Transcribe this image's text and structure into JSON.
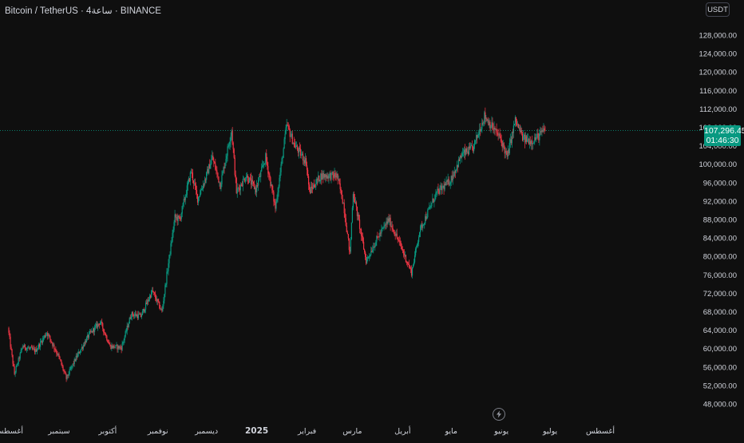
{
  "header": {
    "symbol_title": "Bitcoin / TetherUS · 4ساعة · BINANCE",
    "currency_button": "USDT"
  },
  "price_badge": {
    "price": "107,296.45",
    "countdown": "01:46:30"
  },
  "icons": {
    "lightning": "lightning-icon"
  },
  "colors": {
    "up": "#089981",
    "down": "#f23645",
    "background": "#0f0f0f",
    "axis_text": "#d1d4dc"
  },
  "chart_data": {
    "type": "candlestick",
    "title": "",
    "xlabel": "",
    "ylabel": "",
    "ylim": [
      46000,
      130000
    ],
    "y_ticks": [
      48000,
      52000,
      56000,
      60000,
      64000,
      68000,
      72000,
      76000,
      80000,
      84000,
      88000,
      92000,
      96000,
      100000,
      104000,
      108000,
      112000,
      116000,
      120000,
      124000,
      128000
    ],
    "y_tick_labels": [
      "48,000.00",
      "52,000.00",
      "56,000.00",
      "60,000.00",
      "64,000.00",
      "68,000.00",
      "72,000.00",
      "76,000.00",
      "80,000.00",
      "84,000.00",
      "88,000.00",
      "92,000.00",
      "96,000.00",
      "100,000.00",
      "104,000.00",
      "108,000.00",
      "112,000.00",
      "116,000.00",
      "120,000.00",
      "124,000.00",
      "128,000.00"
    ],
    "x_ticks": [
      {
        "label": "أغسطس",
        "date": "2024-08-01",
        "bold": false
      },
      {
        "label": "سبتمبر",
        "date": "2024-09-01",
        "bold": false
      },
      {
        "label": "أكتوبر",
        "date": "2024-10-01",
        "bold": false
      },
      {
        "label": "نوفمبر",
        "date": "2024-11-01",
        "bold": false
      },
      {
        "label": "ديسمبر",
        "date": "2024-12-01",
        "bold": false
      },
      {
        "label": "2025",
        "date": "2025-01-01",
        "bold": true
      },
      {
        "label": "فبراير",
        "date": "2025-02-01",
        "bold": false
      },
      {
        "label": "مارس",
        "date": "2025-03-01",
        "bold": false
      },
      {
        "label": "أبريل",
        "date": "2025-04-01",
        "bold": false
      },
      {
        "label": "مايو",
        "date": "2025-05-01",
        "bold": false
      },
      {
        "label": "يونيو",
        "date": "2025-06-01",
        "bold": false
      },
      {
        "label": "يوليو",
        "date": "2025-07-01",
        "bold": false
      },
      {
        "label": "أغسطس",
        "date": "2025-08-01",
        "bold": false
      }
    ],
    "current_price": 107296.45,
    "price_path": [
      [
        "2024-08-01",
        64500
      ],
      [
        "2024-08-05",
        54500
      ],
      [
        "2024-08-10",
        60500
      ],
      [
        "2024-08-18",
        59500
      ],
      [
        "2024-08-25",
        63500
      ],
      [
        "2024-09-01",
        58500
      ],
      [
        "2024-09-06",
        53500
      ],
      [
        "2024-09-12",
        58000
      ],
      [
        "2024-09-20",
        63000
      ],
      [
        "2024-09-27",
        65800
      ],
      [
        "2024-10-03",
        60500
      ],
      [
        "2024-10-10",
        60200
      ],
      [
        "2024-10-16",
        67500
      ],
      [
        "2024-10-22",
        67000
      ],
      [
        "2024-10-29",
        72500
      ],
      [
        "2024-11-04",
        68000
      ],
      [
        "2024-11-07",
        76000
      ],
      [
        "2024-11-12",
        88500
      ],
      [
        "2024-11-15",
        88000
      ],
      [
        "2024-11-22",
        98500
      ],
      [
        "2024-11-26",
        92500
      ],
      [
        "2024-12-01",
        97000
      ],
      [
        "2024-12-05",
        101500
      ],
      [
        "2024-12-10",
        95500
      ],
      [
        "2024-12-17",
        107500
      ],
      [
        "2024-12-20",
        94000
      ],
      [
        "2024-12-26",
        97500
      ],
      [
        "2025-01-01",
        94500
      ],
      [
        "2025-01-07",
        101500
      ],
      [
        "2025-01-13",
        90500
      ],
      [
        "2025-01-20",
        108500
      ],
      [
        "2025-01-25",
        104000
      ],
      [
        "2025-02-01",
        100500
      ],
      [
        "2025-02-03",
        94000
      ],
      [
        "2025-02-10",
        97500
      ],
      [
        "2025-02-20",
        97500
      ],
      [
        "2025-02-24",
        91500
      ],
      [
        "2025-02-28",
        80500
      ],
      [
        "2025-03-02",
        94000
      ],
      [
        "2025-03-10",
        79000
      ],
      [
        "2025-03-17",
        84000
      ],
      [
        "2025-03-24",
        88000
      ],
      [
        "2025-03-31",
        82500
      ],
      [
        "2025-04-07",
        76500
      ],
      [
        "2025-04-12",
        85500
      ],
      [
        "2025-04-22",
        93500
      ],
      [
        "2025-05-01",
        96500
      ],
      [
        "2025-05-08",
        102000
      ],
      [
        "2025-05-15",
        103500
      ],
      [
        "2025-05-22",
        110500
      ],
      [
        "2025-05-26",
        108500
      ],
      [
        "2025-06-01",
        105500
      ],
      [
        "2025-06-05",
        101500
      ],
      [
        "2025-06-10",
        109500
      ],
      [
        "2025-06-15",
        105500
      ],
      [
        "2025-06-20",
        105000
      ],
      [
        "2025-06-24",
        106000
      ],
      [
        "2025-06-28",
        107296.45
      ]
    ]
  }
}
